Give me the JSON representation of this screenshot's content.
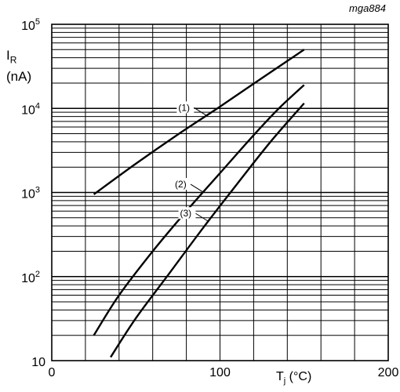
{
  "figure_ref": "mga884",
  "chart_data": {
    "type": "line",
    "title": "",
    "xlabel": {
      "main": "T",
      "sub": "j",
      "unit": " (°C)"
    },
    "ylabel": {
      "main": "I",
      "sub": "R",
      "unit": "(nA)"
    },
    "xlim": [
      0,
      200
    ],
    "ylim": [
      10,
      100000
    ],
    "y_scale": "log",
    "grid": true,
    "x_ticks": [
      0,
      100,
      200
    ],
    "y_ticks": [
      {
        "value": 10,
        "base": "10",
        "exp": ""
      },
      {
        "value": 100,
        "base": "10",
        "exp": "2"
      },
      {
        "value": 1000,
        "base": "10",
        "exp": "3"
      },
      {
        "value": 10000,
        "base": "10",
        "exp": "4"
      },
      {
        "value": 100000,
        "base": "10",
        "exp": "5"
      }
    ],
    "series": [
      {
        "name": "(1)",
        "x": [
          25,
          50,
          75,
          100,
          125,
          150
        ],
        "y": [
          950,
          2200,
          4900,
          10500,
          23000,
          50000
        ],
        "label_at_x": 92
      },
      {
        "name": "(2)",
        "x": [
          25,
          40,
          60,
          80,
          100,
          120,
          135,
          150
        ],
        "y": [
          20,
          60,
          200,
          600,
          1700,
          4800,
          10000,
          19000
        ],
        "label_at_x": 90
      },
      {
        "name": "(3)",
        "x": [
          35,
          50,
          70,
          90,
          110,
          130,
          150
        ],
        "y": [
          11,
          32,
          110,
          380,
          1250,
          4000,
          11500
        ],
        "label_at_x": 93
      }
    ]
  }
}
